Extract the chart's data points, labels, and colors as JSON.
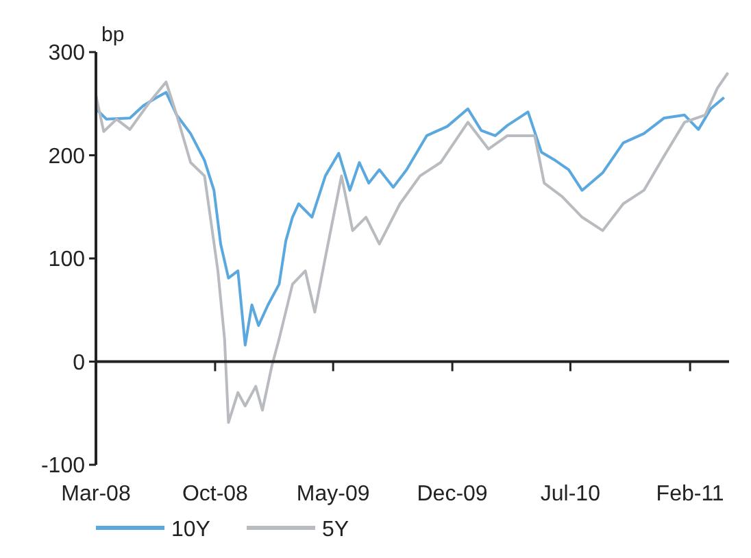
{
  "chart_data": {
    "type": "line",
    "ylabel": "bp",
    "xlim": [
      "2008-03-01",
      "2011-04-12"
    ],
    "ylim": [
      -100,
      300
    ],
    "yticks": [
      -100,
      0,
      100,
      200,
      300
    ],
    "xticks": [
      {
        "value": "2008-03-01",
        "label": "Mar-08"
      },
      {
        "value": "2008-10-01",
        "label": "Oct-08"
      },
      {
        "value": "2009-05-01",
        "label": "May-09"
      },
      {
        "value": "2009-12-01",
        "label": "Dec-09"
      },
      {
        "value": "2010-07-01",
        "label": "Jul-10"
      },
      {
        "value": "2011-02-01",
        "label": "Feb-11"
      }
    ],
    "ref_lines": [
      {
        "axis": "y",
        "value": 0
      }
    ],
    "legend": "bottom",
    "marker": "none",
    "line_style": "solid",
    "series": [
      {
        "name": "10Y",
        "color": "#5ba8df",
        "x": [
          "2008-03-01",
          "2008-03-20",
          "2008-05-01",
          "2008-05-25",
          "2008-06-18",
          "2008-07-05",
          "2008-07-24",
          "2008-08-18",
          "2008-09-12",
          "2008-09-29",
          "2008-10-11",
          "2008-10-25",
          "2008-11-11",
          "2008-11-24",
          "2008-12-06",
          "2008-12-18",
          "2009-01-04",
          "2009-01-24",
          "2009-02-05",
          "2009-02-17",
          "2009-02-28",
          "2009-03-24",
          "2009-04-17",
          "2009-05-11",
          "2009-05-31",
          "2009-06-17",
          "2009-07-04",
          "2009-07-23",
          "2009-08-17",
          "2009-09-10",
          "2009-10-16",
          "2009-11-22",
          "2009-12-29",
          "2010-01-22",
          "2010-02-16",
          "2010-03-10",
          "2010-04-16",
          "2010-05-10",
          "2010-06-04",
          "2010-06-28",
          "2010-07-22",
          "2010-08-28",
          "2010-10-04",
          "2010-11-10",
          "2010-12-16",
          "2011-01-22",
          "2011-02-16",
          "2011-03-10",
          "2011-04-03"
        ],
        "values": [
          245,
          235,
          236,
          248,
          256,
          261,
          239,
          221,
          195,
          166,
          114,
          81,
          88,
          16,
          55,
          35,
          55,
          75,
          117,
          140,
          153,
          140,
          180,
          202,
          166,
          193,
          173,
          186,
          169,
          186,
          219,
          228,
          245,
          224,
          219,
          229,
          242,
          203,
          195,
          186,
          166,
          183,
          212,
          221,
          236,
          239,
          225,
          245,
          256
        ]
      },
      {
        "name": "5Y",
        "color": "#b8bbbf",
        "x": [
          "2008-03-01",
          "2008-03-15",
          "2008-04-07",
          "2008-05-01",
          "2008-06-06",
          "2008-07-05",
          "2008-07-24",
          "2008-08-18",
          "2008-09-12",
          "2008-09-24",
          "2008-10-06",
          "2008-10-18",
          "2008-10-25",
          "2008-11-11",
          "2008-11-24",
          "2008-12-13",
          "2008-12-25",
          "2009-01-11",
          "2009-01-24",
          "2009-02-17",
          "2009-03-12",
          "2009-03-29",
          "2009-04-17",
          "2009-05-16",
          "2009-06-05",
          "2009-06-29",
          "2009-07-23",
          "2009-08-29",
          "2009-10-04",
          "2009-11-10",
          "2009-12-29",
          "2010-02-04",
          "2010-03-10",
          "2010-04-28",
          "2010-05-15",
          "2010-06-16",
          "2010-07-22",
          "2010-08-28",
          "2010-10-04",
          "2010-11-10",
          "2010-12-16",
          "2011-01-22",
          "2011-02-28",
          "2011-03-22",
          "2011-04-10"
        ],
        "values": [
          258,
          223,
          235,
          225,
          252,
          271,
          239,
          193,
          180,
          134,
          88,
          22,
          -59,
          -30,
          -43,
          -24,
          -47,
          -4,
          22,
          75,
          88,
          48,
          101,
          180,
          127,
          140,
          114,
          153,
          180,
          193,
          232,
          206,
          219,
          219,
          173,
          160,
          140,
          127,
          153,
          166,
          199,
          232,
          239,
          265,
          280
        ]
      }
    ]
  }
}
